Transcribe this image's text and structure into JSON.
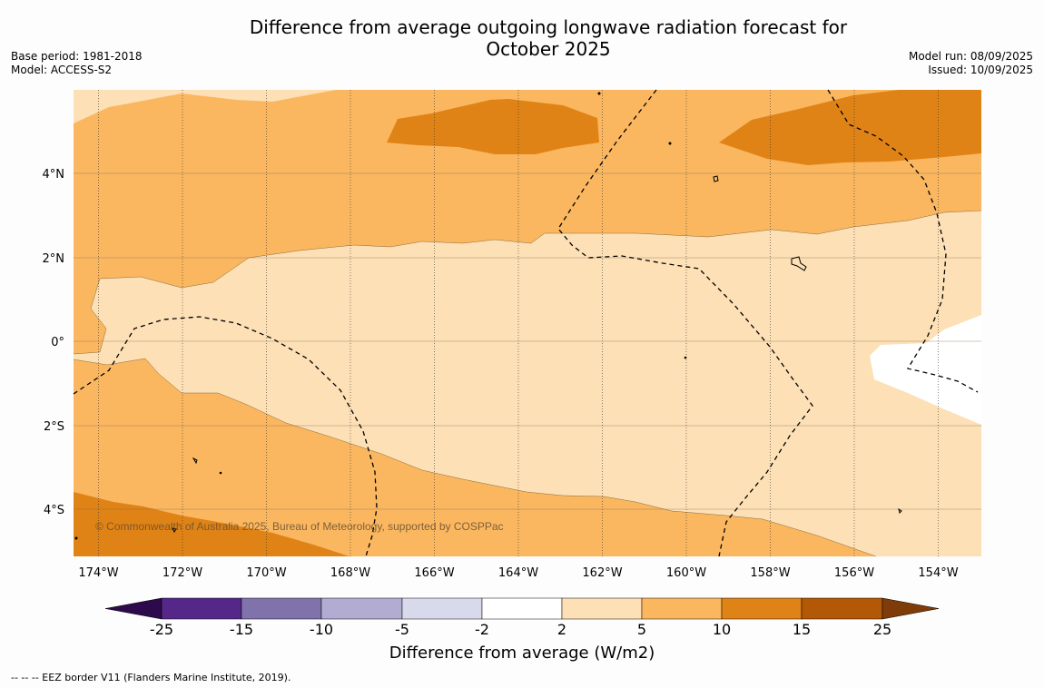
{
  "header": {
    "title_line1": "Difference from average outgoing longwave radiation forecast for",
    "title_line2": "October 2025",
    "base_period": "Base period: 1981-2018",
    "model": "Model: ACCESS-S2",
    "model_run": "Model run: 08/09/2025",
    "issued": "Issued: 10/09/2025"
  },
  "map": {
    "copyright": "© Commonwealth of Australia 2025, Bureau of Meteorology, supported by COSPPac",
    "lon_ticks": [
      "174°W",
      "172°W",
      "170°W",
      "168°W",
      "166°W",
      "164°W",
      "162°W",
      "160°W",
      "158°W",
      "156°W",
      "154°W"
    ],
    "lat_ticks": [
      "4°N",
      "2°N",
      "0°",
      "2°S",
      "4°S"
    ],
    "colors": {
      "c_2_5": "#fde0b6",
      "c_5_10": "#fab760",
      "c_10_15": "#e08316",
      "c_n2_2": "#ffffff"
    }
  },
  "colorbar": {
    "title": "Difference from average (W/m2)",
    "labels": [
      "-25",
      "-15",
      "-10",
      "-5",
      "-2",
      "2",
      "5",
      "10",
      "15",
      "25"
    ],
    "colors": [
      "#2d0a4b",
      "#542788",
      "#8073ac",
      "#b2abd2",
      "#d8daeb",
      "#ffffff",
      "#fde0b6",
      "#fab760",
      "#e08316",
      "#b35806",
      "#7f3b08"
    ]
  },
  "footnote": "--  --  -- EEZ border V11 (Flanders Marine Institute, 2019)."
}
